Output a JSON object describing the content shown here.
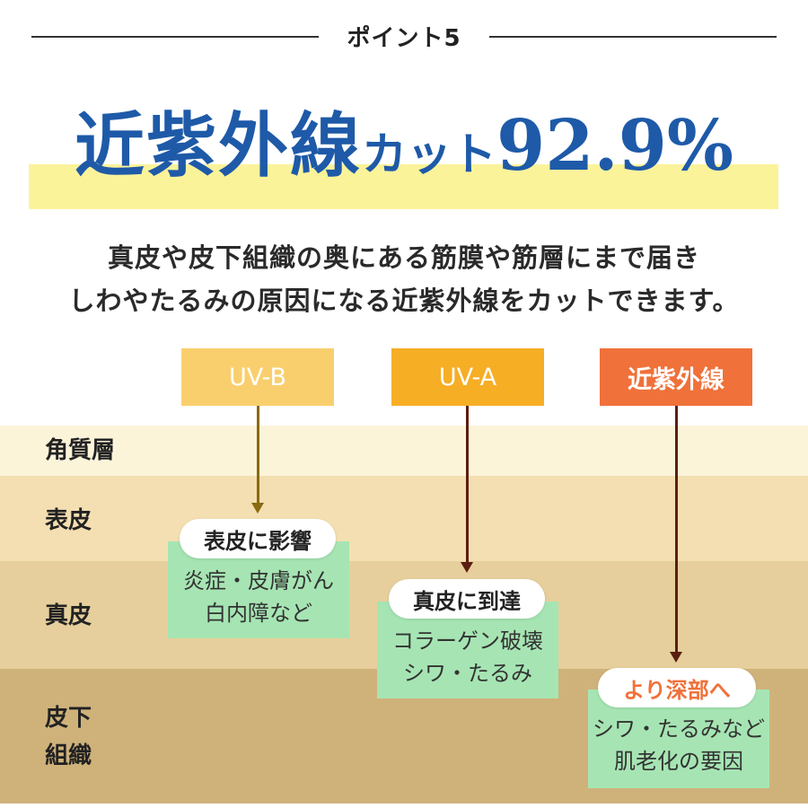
{
  "header": {
    "point_label": "ポイント5"
  },
  "headline": {
    "big": "近紫外線",
    "mid": "カット",
    "num": "92.9%"
  },
  "description": {
    "line1": "真皮や皮下組織の奥にある筋膜や筋層にまで届き",
    "line2": "しわやたるみの原因になる近紫外線をカットできます。"
  },
  "layers": [
    {
      "label": "角質層"
    },
    {
      "label": "表皮"
    },
    {
      "label": "真皮"
    },
    {
      "label": "皮下組織",
      "lines": [
        "皮下",
        "組織"
      ]
    }
  ],
  "rays": [
    {
      "label": "UV-B",
      "color": "#f9cf6e",
      "arrow_color": "#8a6a12",
      "pill": "表皮に影響",
      "effect": [
        "炎症・皮膚がん",
        "白内障など"
      ]
    },
    {
      "label": "UV-A",
      "color": "#f6ae25",
      "arrow_color": "#5a1f10",
      "pill": "真皮に到達",
      "effect": [
        "コラーゲン破壊",
        "シワ・たるみ"
      ]
    },
    {
      "label": "近紫外線",
      "color": "#f0713a",
      "arrow_color": "#5a1f10",
      "pill": "より深部へ",
      "pill_color": "#f0713a",
      "effect": [
        "シワ・たるみなど",
        "肌老化の要因"
      ]
    }
  ],
  "colors": {
    "headline": "#1e5aa8",
    "highlight": "#fbf39a",
    "effect_bg": "#a6e5b3"
  }
}
